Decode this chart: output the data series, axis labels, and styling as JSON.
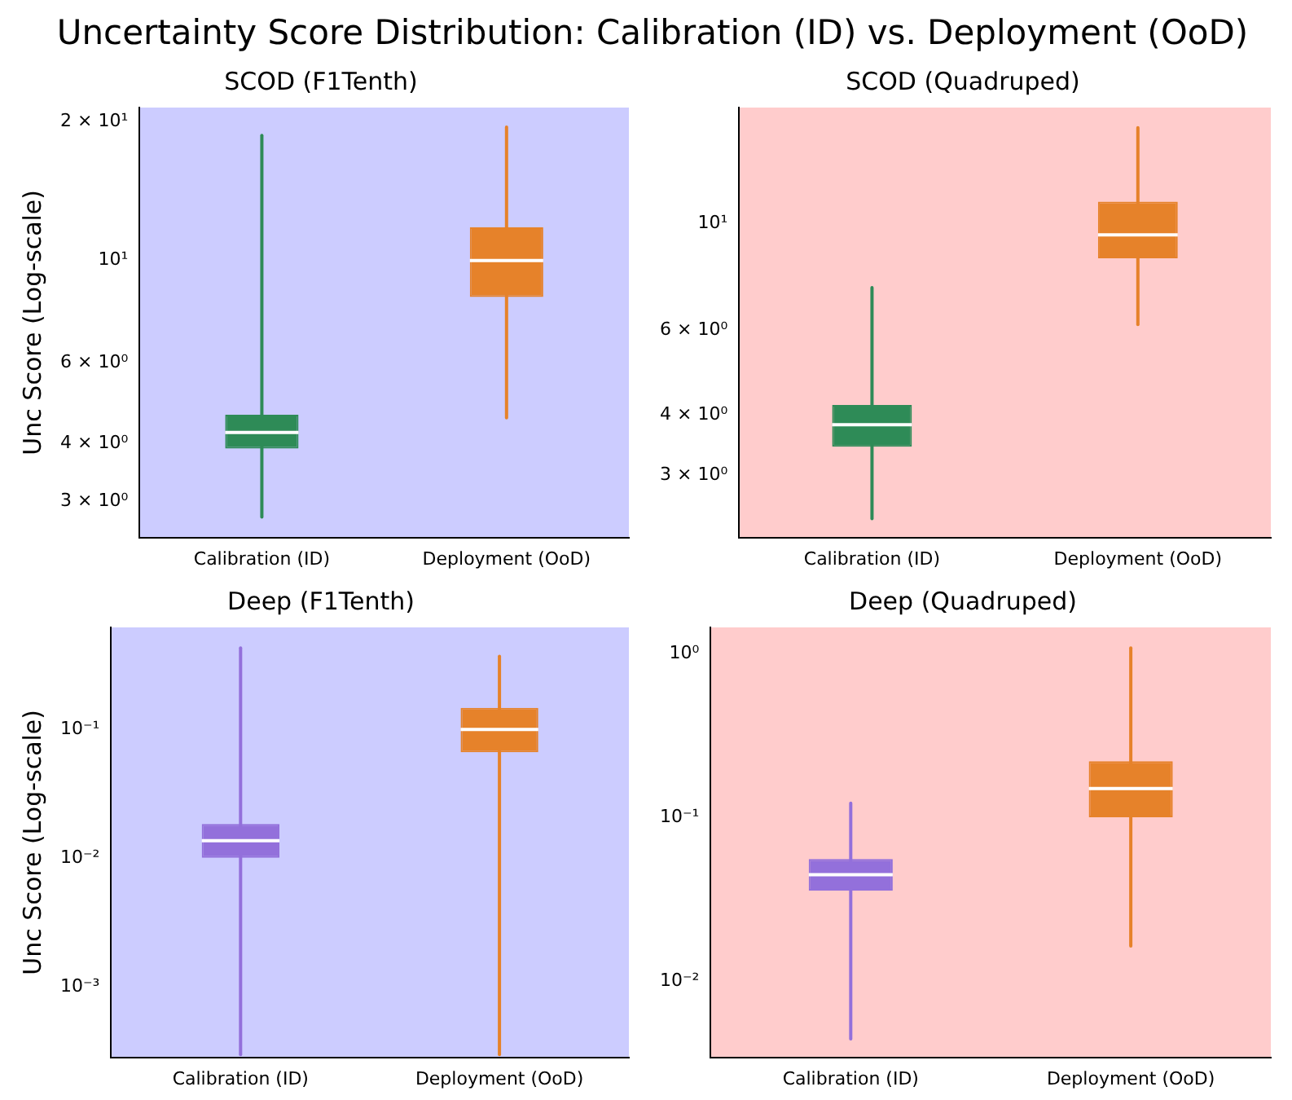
{
  "chart_data": [
    {
      "type": "other",
      "title": "Uncertainty Score Distribution: Calibration (ID) vs. Deployment (OoD)"
    },
    {
      "type": "box",
      "title": "SCOD (F1Tenth)",
      "ylabel": "Unc Score (Log-scale)",
      "categories": [
        "Calibration (ID)",
        "Deployment (OoD)"
      ],
      "colors": [
        "#2e8b57",
        "#e6822a"
      ],
      "log": true,
      "ylim": [
        2.5,
        21.5
      ],
      "yticks": [
        {
          "value": 3,
          "label": "3 × 10⁰"
        },
        {
          "value": 4,
          "label": "4 × 10⁰"
        },
        {
          "value": 6,
          "label": "6 × 10⁰"
        },
        {
          "value": 10,
          "label": "10¹"
        },
        {
          "value": 20,
          "label": "2 × 10¹"
        }
      ],
      "boxes": [
        {
          "low": 2.77,
          "q1": 3.9,
          "median": 4.23,
          "q3": 4.62,
          "high": 18.7
        },
        {
          "low": 4.55,
          "q1": 8.33,
          "median": 10.0,
          "q3": 11.8,
          "high": 19.5
        }
      ]
    },
    {
      "type": "box",
      "title": "SCOD (Quadruped)",
      "categories": [
        "Calibration (ID)",
        "Deployment (OoD)"
      ],
      "colors": [
        "#2e8b57",
        "#e6822a"
      ],
      "log": true,
      "ylim": [
        2.23,
        17.4
      ],
      "yticks": [
        {
          "value": 3,
          "label": "3 × 10⁰"
        },
        {
          "value": 4,
          "label": "4 × 10⁰"
        },
        {
          "value": 6,
          "label": "6 × 10⁰"
        },
        {
          "value": 10,
          "label": "10¹"
        }
      ],
      "boxes": [
        {
          "low": 2.44,
          "q1": 3.44,
          "median": 3.82,
          "q3": 4.2,
          "high": 7.36
        },
        {
          "low": 6.17,
          "q1": 8.47,
          "median": 9.47,
          "q3": 11.1,
          "high": 15.8
        }
      ]
    },
    {
      "type": "box",
      "title": "Deep (F1Tenth)",
      "ylabel": "Unc Score (Log-scale)",
      "categories": [
        "Calibration (ID)",
        "Deployment (OoD)"
      ],
      "colors": [
        "#9370db",
        "#e6822a"
      ],
      "log": true,
      "ylim": [
        0.000286,
        0.62
      ],
      "yticks": [
        {
          "value": 0.001,
          "label": "10⁻³"
        },
        {
          "value": 0.01,
          "label": "10⁻²"
        },
        {
          "value": 0.1,
          "label": "10⁻¹"
        }
      ],
      "boxes": [
        {
          "low": 0.0003,
          "q1": 0.0101,
          "median": 0.0137,
          "q3": 0.0185,
          "high": 0.43
        },
        {
          "low": 0.0003,
          "q1": 0.0665,
          "median": 0.1,
          "q3": 0.147,
          "high": 0.37
        }
      ]
    },
    {
      "type": "box",
      "title": "Deep (Quadruped)",
      "categories": [
        "Calibration (ID)",
        "Deployment (OoD)"
      ],
      "colors": [
        "#9370db",
        "#e6822a"
      ],
      "log": true,
      "ylim": [
        0.00344,
        1.44
      ],
      "yticks": [
        {
          "value": 0.01,
          "label": "10⁻²"
        },
        {
          "value": 0.1,
          "label": "10⁻¹"
        },
        {
          "value": 1,
          "label": "10⁰"
        }
      ],
      "boxes": [
        {
          "low": 0.00446,
          "q1": 0.0358,
          "median": 0.0447,
          "q3": 0.0557,
          "high": 0.122
        },
        {
          "low": 0.0164,
          "q1": 0.1,
          "median": 0.15,
          "q3": 0.22,
          "high": 1.08
        }
      ]
    }
  ]
}
